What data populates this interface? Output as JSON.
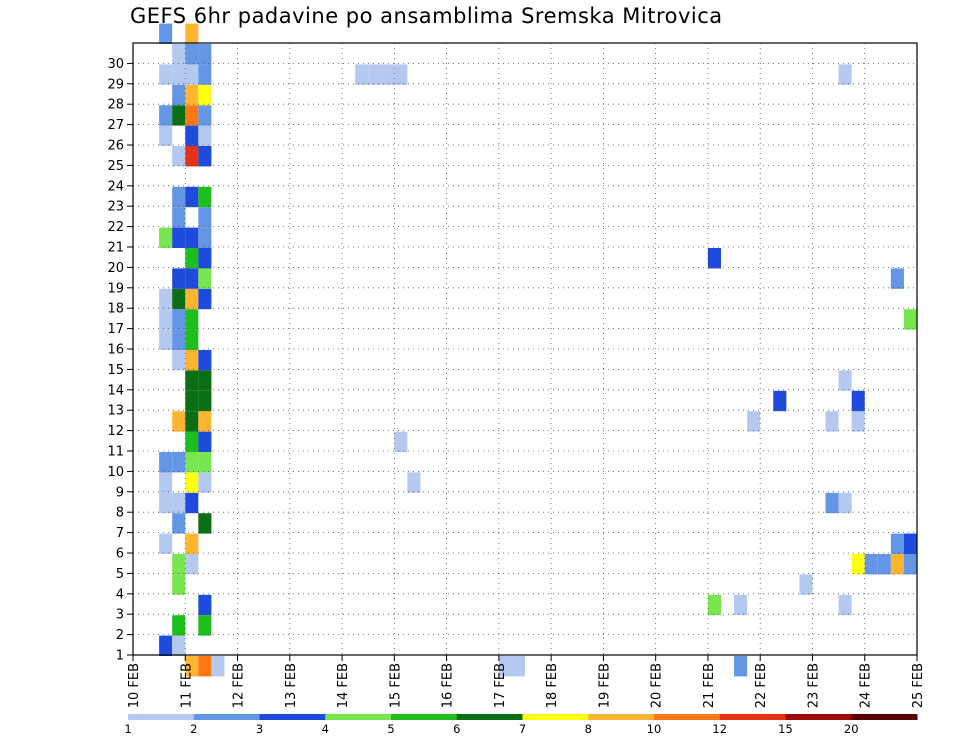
{
  "chart_data": {
    "type": "heatmap",
    "title": "GEFS 6hr padavine po ansamblima Sremska Mitrovica",
    "xlabel": "",
    "ylabel": "",
    "x_unit": "day of February (6-hourly steps)",
    "xlim": [
      10,
      25
    ],
    "ylim": [
      0,
      30
    ],
    "x_tick_labels": [
      "10 FEB",
      "11 FEB",
      "12 FEB",
      "13 FEB",
      "14 FEB",
      "15 FEB",
      "16 FEB",
      "17 FEB",
      "18 FEB",
      "19 FEB",
      "20 FEB",
      "21 FEB",
      "22 FEB",
      "23 FEB",
      "24 FEB",
      "25 FEB"
    ],
    "y_tick_labels": [
      "1",
      "2",
      "3",
      "4",
      "5",
      "6",
      "7",
      "8",
      "9",
      "10",
      "11",
      "12",
      "13",
      "14",
      "15",
      "16",
      "17",
      "18",
      "19",
      "20",
      "21",
      "22",
      "23",
      "24",
      "25",
      "26",
      "27",
      "28",
      "29",
      "30"
    ],
    "grid": true,
    "legend": {
      "position": "bottom",
      "labels": [
        "1",
        "2",
        "3",
        "4",
        "5",
        "6",
        "7",
        "8",
        "10",
        "12",
        "15",
        "20"
      ],
      "colors": [
        "#b4c8f0",
        "#6496e6",
        "#1e4bdc",
        "#78e650",
        "#1ebe1e",
        "#0a6e14",
        "#ffff14",
        "#ffb432",
        "#ff7814",
        "#e63214",
        "#a00a0a",
        "#5a0000"
      ]
    },
    "cells": [
      {
        "y": 0,
        "x": 11.0,
        "v": 8
      },
      {
        "y": 0,
        "x": 11.25,
        "v": 10
      },
      {
        "y": 0,
        "x": 11.5,
        "v": 1
      },
      {
        "y": 0,
        "x": 17.0,
        "v": 1
      },
      {
        "y": 0,
        "x": 17.25,
        "v": 1
      },
      {
        "y": 0,
        "x": 21.5,
        "v": 2
      },
      {
        "y": 1,
        "x": 10.5,
        "v": 3
      },
      {
        "y": 1,
        "x": 10.75,
        "v": 1
      },
      {
        "y": 2,
        "x": 10.75,
        "v": 5
      },
      {
        "y": 2,
        "x": 11.25,
        "v": 5
      },
      {
        "y": 3,
        "x": 11.25,
        "v": 3
      },
      {
        "y": 3,
        "x": 21.0,
        "v": 4
      },
      {
        "y": 3,
        "x": 21.5,
        "v": 1
      },
      {
        "y": 3,
        "x": 23.5,
        "v": 1
      },
      {
        "y": 4,
        "x": 10.75,
        "v": 4
      },
      {
        "y": 4,
        "x": 22.75,
        "v": 1
      },
      {
        "y": 5,
        "x": 10.75,
        "v": 4
      },
      {
        "y": 5,
        "x": 11.0,
        "v": 1
      },
      {
        "y": 5,
        "x": 23.75,
        "v": 7
      },
      {
        "y": 5,
        "x": 24.0,
        "v": 2
      },
      {
        "y": 5,
        "x": 24.25,
        "v": 2
      },
      {
        "y": 5,
        "x": 24.5,
        "v": 8
      },
      {
        "y": 5,
        "x": 24.75,
        "v": 2
      },
      {
        "y": 6,
        "x": 10.5,
        "v": 1
      },
      {
        "y": 6,
        "x": 11.0,
        "v": 8
      },
      {
        "y": 6,
        "x": 24.5,
        "v": 2
      },
      {
        "y": 6,
        "x": 24.75,
        "v": 3
      },
      {
        "y": 7,
        "x": 10.75,
        "v": 2
      },
      {
        "y": 7,
        "x": 11.25,
        "v": 6
      },
      {
        "y": 8,
        "x": 10.5,
        "v": 1
      },
      {
        "y": 8,
        "x": 10.75,
        "v": 1
      },
      {
        "y": 8,
        "x": 11.0,
        "v": 3
      },
      {
        "y": 8,
        "x": 23.25,
        "v": 2
      },
      {
        "y": 8,
        "x": 23.5,
        "v": 1
      },
      {
        "y": 9,
        "x": 10.5,
        "v": 1
      },
      {
        "y": 9,
        "x": 11.0,
        "v": 7
      },
      {
        "y": 9,
        "x": 11.25,
        "v": 1
      },
      {
        "y": 9,
        "x": 15.25,
        "v": 1
      },
      {
        "y": 10,
        "x": 10.5,
        "v": 2
      },
      {
        "y": 10,
        "x": 10.75,
        "v": 2
      },
      {
        "y": 10,
        "x": 11.0,
        "v": 4
      },
      {
        "y": 10,
        "x": 11.25,
        "v": 4
      },
      {
        "y": 11,
        "x": 11.0,
        "v": 5
      },
      {
        "y": 11,
        "x": 11.25,
        "v": 3
      },
      {
        "y": 11,
        "x": 15.0,
        "v": 1
      },
      {
        "y": 12,
        "x": 10.75,
        "v": 8
      },
      {
        "y": 12,
        "x": 11.0,
        "v": 6
      },
      {
        "y": 12,
        "x": 11.25,
        "v": 8
      },
      {
        "y": 12,
        "x": 21.75,
        "v": 1
      },
      {
        "y": 12,
        "x": 23.25,
        "v": 1
      },
      {
        "y": 12,
        "x": 23.75,
        "v": 1
      },
      {
        "y": 13,
        "x": 11.0,
        "v": 6
      },
      {
        "y": 13,
        "x": 11.25,
        "v": 6
      },
      {
        "y": 13,
        "x": 22.25,
        "v": 3
      },
      {
        "y": 13,
        "x": 23.75,
        "v": 3
      },
      {
        "y": 14,
        "x": 11.0,
        "v": 6
      },
      {
        "y": 14,
        "x": 11.25,
        "v": 6
      },
      {
        "y": 14,
        "x": 23.5,
        "v": 1
      },
      {
        "y": 15,
        "x": 10.75,
        "v": 1
      },
      {
        "y": 15,
        "x": 11.0,
        "v": 8
      },
      {
        "y": 15,
        "x": 11.25,
        "v": 3
      },
      {
        "y": 16,
        "x": 10.5,
        "v": 1
      },
      {
        "y": 16,
        "x": 10.75,
        "v": 2
      },
      {
        "y": 16,
        "x": 11.0,
        "v": 5
      },
      {
        "y": 17,
        "x": 10.5,
        "v": 1
      },
      {
        "y": 17,
        "x": 10.75,
        "v": 2
      },
      {
        "y": 17,
        "x": 11.0,
        "v": 5
      },
      {
        "y": 17,
        "x": 24.75,
        "v": 4
      },
      {
        "y": 18,
        "x": 10.5,
        "v": 1
      },
      {
        "y": 18,
        "x": 10.75,
        "v": 6
      },
      {
        "y": 18,
        "x": 11.0,
        "v": 8
      },
      {
        "y": 18,
        "x": 11.25,
        "v": 3
      },
      {
        "y": 19,
        "x": 10.75,
        "v": 3
      },
      {
        "y": 19,
        "x": 11.0,
        "v": 3
      },
      {
        "y": 19,
        "x": 11.25,
        "v": 4
      },
      {
        "y": 19,
        "x": 24.5,
        "v": 2
      },
      {
        "y": 20,
        "x": 11.0,
        "v": 5
      },
      {
        "y": 20,
        "x": 11.25,
        "v": 3
      },
      {
        "y": 20,
        "x": 21.0,
        "v": 3
      },
      {
        "y": 21,
        "x": 10.5,
        "v": 4
      },
      {
        "y": 21,
        "x": 10.75,
        "v": 3
      },
      {
        "y": 21,
        "x": 11.0,
        "v": 3
      },
      {
        "y": 21,
        "x": 11.25,
        "v": 2
      },
      {
        "y": 22,
        "x": 10.75,
        "v": 2
      },
      {
        "y": 22,
        "x": 11.25,
        "v": 2
      },
      {
        "y": 23,
        "x": 10.75,
        "v": 2
      },
      {
        "y": 23,
        "x": 11.0,
        "v": 3
      },
      {
        "y": 23,
        "x": 11.25,
        "v": 5
      },
      {
        "y": 25,
        "x": 10.75,
        "v": 1
      },
      {
        "y": 25,
        "x": 11.0,
        "v": 12
      },
      {
        "y": 25,
        "x": 11.25,
        "v": 3
      },
      {
        "y": 26,
        "x": 10.5,
        "v": 1
      },
      {
        "y": 26,
        "x": 11.0,
        "v": 3
      },
      {
        "y": 26,
        "x": 11.25,
        "v": 1
      },
      {
        "y": 27,
        "x": 10.5,
        "v": 2
      },
      {
        "y": 27,
        "x": 10.75,
        "v": 6
      },
      {
        "y": 27,
        "x": 11.0,
        "v": 10
      },
      {
        "y": 27,
        "x": 11.25,
        "v": 2
      },
      {
        "y": 28,
        "x": 10.75,
        "v": 2
      },
      {
        "y": 28,
        "x": 11.0,
        "v": 8
      },
      {
        "y": 28,
        "x": 11.25,
        "v": 7
      },
      {
        "y": 29,
        "x": 10.5,
        "v": 1
      },
      {
        "y": 29,
        "x": 10.75,
        "v": 1
      },
      {
        "y": 29,
        "x": 11.0,
        "v": 1
      },
      {
        "y": 29,
        "x": 11.25,
        "v": 2
      },
      {
        "y": 29,
        "x": 14.25,
        "v": 1
      },
      {
        "y": 29,
        "x": 14.5,
        "v": 1
      },
      {
        "y": 29,
        "x": 14.75,
        "v": 1
      },
      {
        "y": 29,
        "x": 15.0,
        "v": 1
      },
      {
        "y": 29,
        "x": 23.5,
        "v": 1
      },
      {
        "y": 30,
        "x": 10.75,
        "v": 1
      },
      {
        "y": 30,
        "x": 11.0,
        "v": 2
      },
      {
        "y": 30,
        "x": 11.25,
        "v": 2
      },
      {
        "y": 31,
        "x": 10.5,
        "v": 2
      },
      {
        "y": 31,
        "x": 11.0,
        "v": 8
      }
    ]
  }
}
